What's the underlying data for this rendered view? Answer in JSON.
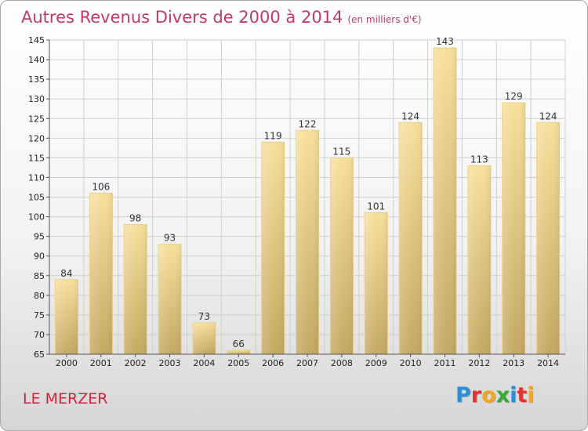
{
  "header": {
    "title": "Autres Revenus Divers de 2000 à 2014",
    "subtitle": "(en milliers d'€)"
  },
  "footer": {
    "place": "LE MERZER",
    "logo": [
      {
        "ch": "P",
        "color": "#2b8fd6"
      },
      {
        "ch": "r",
        "color": "#e3342f"
      },
      {
        "ch": "o",
        "color": "#f2a623"
      },
      {
        "ch": "x",
        "color": "#3aaa35"
      },
      {
        "ch": "i",
        "color": "#2b8fd6"
      },
      {
        "ch": "t",
        "color": "#e3342f"
      },
      {
        "ch": "i",
        "color": "#f2a623"
      }
    ]
  },
  "chart_data": {
    "type": "bar",
    "title": "Autres Revenus Divers de 2000 à 2014",
    "categories": [
      "2000",
      "2001",
      "2002",
      "2003",
      "2004",
      "2005",
      "2006",
      "2007",
      "2008",
      "2009",
      "2010",
      "2011",
      "2012",
      "2013",
      "2014"
    ],
    "values": [
      84,
      106,
      98,
      93,
      73,
      66,
      119,
      122,
      115,
      101,
      124,
      143,
      113,
      129,
      124
    ],
    "ylim": [
      65,
      145
    ],
    "yticks": [
      65,
      70,
      75,
      80,
      85,
      90,
      95,
      100,
      105,
      110,
      115,
      120,
      125,
      130,
      135,
      140,
      145
    ],
    "grid": true,
    "legend": "none",
    "colors": {
      "bar_light": "#f7dc96",
      "bar_dark": "#c4a862",
      "grid": "#cfcfcf",
      "axis": "#555555"
    }
  }
}
